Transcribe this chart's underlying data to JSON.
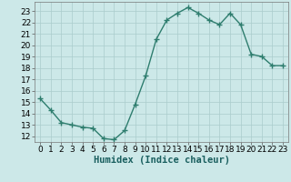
{
  "x": [
    0,
    1,
    2,
    3,
    4,
    5,
    6,
    7,
    8,
    9,
    10,
    11,
    12,
    13,
    14,
    15,
    16,
    17,
    18,
    19,
    20,
    21,
    22,
    23
  ],
  "y": [
    15.3,
    14.3,
    13.2,
    13.0,
    12.8,
    12.7,
    11.8,
    11.7,
    12.5,
    14.8,
    17.3,
    20.5,
    22.2,
    22.8,
    23.3,
    22.8,
    22.2,
    21.8,
    22.8,
    21.8,
    19.2,
    19.0,
    18.2,
    18.2
  ],
  "line_color": "#2e7d6e",
  "bg_color": "#cce8e8",
  "grid_color": "#aacccc",
  "xlabel": "Humidex (Indice chaleur)",
  "ylim": [
    11.5,
    23.8
  ],
  "xlim": [
    -0.5,
    23.5
  ],
  "yticks": [
    12,
    13,
    14,
    15,
    16,
    17,
    18,
    19,
    20,
    21,
    22,
    23
  ],
  "xticks": [
    0,
    1,
    2,
    3,
    4,
    5,
    6,
    7,
    8,
    9,
    10,
    11,
    12,
    13,
    14,
    15,
    16,
    17,
    18,
    19,
    20,
    21,
    22,
    23
  ],
  "marker": "+",
  "linewidth": 1.0,
  "markersize": 4,
  "tick_fontsize": 6.5,
  "xlabel_fontsize": 7.5
}
